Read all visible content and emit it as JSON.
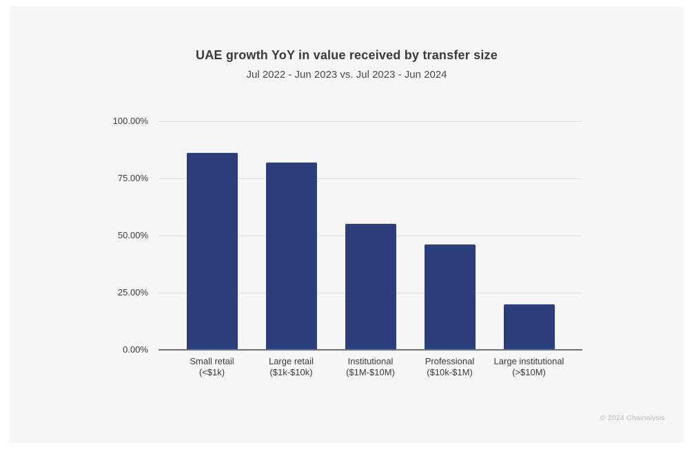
{
  "footer": "© 2024 Chainalysis",
  "colors": {
    "bar": "#2c3e7b",
    "card_background": "#f6f6f7",
    "page_background": "#ffffff",
    "grid": "#e2e2e2",
    "axis": "#707070",
    "title_text": "#3a3a3a",
    "subtitle_text": "#4a4a4a",
    "tick_text": "#3a3a3a",
    "footer_text": "#b9b9b9"
  },
  "chart_data": {
    "type": "bar",
    "title": "UAE growth YoY in value received by transfer size",
    "subtitle": "Jul 2022 - Jun 2023 vs. Jul 2023 - Jun 2024",
    "categories": [
      "Small retail (<$1k)",
      "Large retail ($1k-$10k)",
      "Institutional ($1M-$10M)",
      "Professional ($10k-$1M)",
      "Large institutional (>$10M)"
    ],
    "category_names": [
      "Small retail",
      "Large retail",
      "Institutional",
      "Professional",
      "Large institutional"
    ],
    "category_ranges": [
      "(<$1k)",
      "($1k-$10k)",
      "($1M-$10M)",
      "($10k-$1M)",
      "(>$10M)"
    ],
    "values": [
      86,
      82,
      55,
      46,
      20
    ],
    "unit": "%",
    "xlabel": "",
    "ylabel": "",
    "ylim": [
      0,
      100
    ],
    "yticks": [
      "100.00%",
      "75.00%",
      "50.00%",
      "25.00%",
      "0.00%"
    ],
    "ytick_values": [
      100,
      75,
      50,
      25,
      0
    ],
    "grid": "horizontal",
    "legend": "none"
  }
}
